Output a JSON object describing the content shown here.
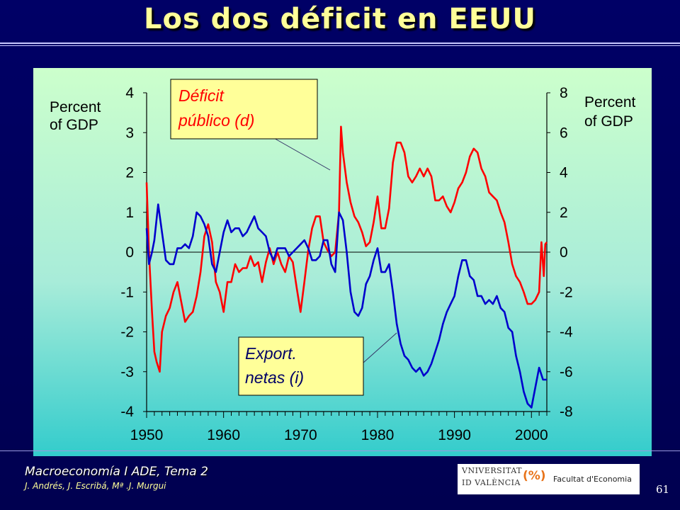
{
  "slide": {
    "title": "Los dos déficit en EEUU",
    "footer_course": "Macroeconomía I ADE, Tema 2",
    "footer_authors": "J. Andrés, J. Escribá, Mª .J. Murgui",
    "page_number": "61",
    "logo": {
      "line1": "VNIVERSITAT",
      "line2": "ID VALÈNCIA",
      "mark": "(%)",
      "faculty": "Facultat d'Economia"
    }
  },
  "colors": {
    "background": "#000066",
    "title": "#ffff99",
    "deficit_line": "#ff0000",
    "exports_line": "#0000cc",
    "callout_fill": "#ffff99"
  },
  "chart_data": {
    "type": "line",
    "title": "",
    "left_axis_label": "Percent of GDP",
    "right_axis_label": "Percent of GDP",
    "xlim": [
      1950,
      2002
    ],
    "left_ylim": [
      -4,
      4
    ],
    "right_ylim": [
      -8,
      8
    ],
    "x_ticks": [
      "1950",
      "1960",
      "1970",
      "1980",
      "1990",
      "2000"
    ],
    "left_ticks": [
      "-4",
      "-3",
      "-2",
      "-1",
      "0",
      "1",
      "2",
      "3",
      "4"
    ],
    "right_ticks": [
      "-8",
      "-6",
      "-4",
      "-2",
      "0",
      "2",
      "4",
      "6",
      "8"
    ],
    "grid": false,
    "series": [
      {
        "name": "Déficit público (d)",
        "axis": "right",
        "color": "#ff0000",
        "x": [
          1950,
          1950.3,
          1950.7,
          1951,
          1951.3,
          1951.7,
          1952,
          1952.5,
          1953,
          1953.5,
          1954,
          1954.5,
          1955,
          1955.5,
          1956,
          1956.5,
          1957,
          1957.5,
          1958,
          1958.5,
          1959,
          1959.5,
          1960,
          1960.5,
          1961,
          1961.5,
          1962,
          1962.5,
          1963,
          1963.5,
          1964,
          1964.5,
          1965,
          1965.5,
          1966,
          1966.5,
          1967,
          1967.5,
          1968,
          1968.5,
          1969,
          1969.5,
          1970,
          1970.5,
          1971,
          1971.5,
          1972,
          1972.5,
          1973,
          1973.5,
          1974,
          1974.5,
          1975,
          1975.25,
          1975.5,
          1976,
          1976.5,
          1977,
          1977.5,
          1978,
          1978.5,
          1979,
          1979.5,
          1980,
          1980.5,
          1981,
          1981.5,
          1982,
          1982.5,
          1983,
          1983.5,
          1984,
          1984.5,
          1985,
          1985.5,
          1986,
          1986.5,
          1987,
          1987.5,
          1988,
          1988.5,
          1989,
          1989.5,
          1990,
          1990.5,
          1991,
          1991.5,
          1992,
          1992.5,
          1993,
          1993.5,
          1994,
          1994.5,
          1995,
          1995.5,
          1996,
          1996.5,
          1997,
          1997.5,
          1998,
          1998.5,
          1999,
          1999.5,
          2000,
          2000.5,
          2001,
          2001.3,
          2001.6,
          2001.8,
          2002
        ],
        "values": [
          3.5,
          0,
          -3,
          -5,
          -5.5,
          -6,
          -4,
          -3.2,
          -2.8,
          -2,
          -1.5,
          -2.5,
          -3.5,
          -3.2,
          -3,
          -2.2,
          -1,
          0.8,
          1.4,
          0.5,
          -1.5,
          -2,
          -3,
          -1.5,
          -1.5,
          -0.6,
          -1,
          -0.8,
          -0.8,
          -0.2,
          -0.7,
          -0.5,
          -1.5,
          -0.5,
          0.2,
          -0.6,
          0,
          -0.6,
          -1,
          -0.2,
          -0.5,
          -1.8,
          -3,
          -1.5,
          0.1,
          1.2,
          1.8,
          1.8,
          0.5,
          0.1,
          -0.2,
          0,
          2,
          6.3,
          5,
          3.5,
          2.5,
          1.8,
          1.5,
          1.0,
          0.3,
          0.5,
          1.5,
          2.8,
          1.2,
          1.2,
          2.2,
          4.5,
          5.5,
          5.5,
          5,
          3.8,
          3.5,
          3.8,
          4.2,
          3.8,
          4.2,
          3.8,
          2.6,
          2.6,
          2.8,
          2.3,
          2,
          2.5,
          3.2,
          3.5,
          4,
          4.8,
          5.2,
          5,
          4.2,
          3.8,
          3,
          2.8,
          2.6,
          2,
          1.5,
          0.5,
          -0.6,
          -1.2,
          -1.5,
          -2.0,
          -2.6,
          -2.6,
          -2.4,
          -2,
          0.5,
          -1.2,
          0.4,
          0.5
        ]
      },
      {
        "name": "Export. netas (i)",
        "axis": "left",
        "color": "#0000cc",
        "x": [
          1950,
          1950.3,
          1950.7,
          1951,
          1951.5,
          1952,
          1952.5,
          1953,
          1953.5,
          1954,
          1954.5,
          1955,
          1955.5,
          1956,
          1956.5,
          1957,
          1957.5,
          1958,
          1958.5,
          1959,
          1959.5,
          1960,
          1960.5,
          1961,
          1961.5,
          1962,
          1962.5,
          1963,
          1963.5,
          1964,
          1964.5,
          1965,
          1965.5,
          1966,
          1966.5,
          1967,
          1967.5,
          1968,
          1968.5,
          1969,
          1969.5,
          1970,
          1970.5,
          1971,
          1971.5,
          1972,
          1972.5,
          1973,
          1973.5,
          1974,
          1974.5,
          1975,
          1975.5,
          1976,
          1976.5,
          1977,
          1977.5,
          1978,
          1978.5,
          1979,
          1979.5,
          1980,
          1980.5,
          1981,
          1981.5,
          1982,
          1982.5,
          1983,
          1983.5,
          1984,
          1984.5,
          1985,
          1985.5,
          1986,
          1986.5,
          1987,
          1987.5,
          1988,
          1988.5,
          1989,
          1989.5,
          1990,
          1990.5,
          1991,
          1991.5,
          1992,
          1992.5,
          1993,
          1993.5,
          1994,
          1994.5,
          1995,
          1995.5,
          1996,
          1996.5,
          1997,
          1997.5,
          1998,
          1998.5,
          1999,
          1999.5,
          2000,
          2000.5,
          2001,
          2001.5,
          2002
        ],
        "values": [
          0.6,
          -0.3,
          0,
          0.3,
          1.2,
          0.5,
          -0.2,
          -0.3,
          -0.3,
          0.1,
          0.1,
          0.2,
          0.1,
          0.4,
          1,
          0.9,
          0.7,
          0.4,
          -0.3,
          -0.5,
          0,
          0.5,
          0.8,
          0.5,
          0.6,
          0.6,
          0.4,
          0.5,
          0.7,
          0.9,
          0.6,
          0.5,
          0.4,
          0,
          -0.2,
          0.1,
          0.1,
          0.1,
          -0.1,
          0,
          0.1,
          0.2,
          0.3,
          0.1,
          -0.2,
          -0.2,
          -0.1,
          0.3,
          0.3,
          -0.3,
          -0.5,
          1,
          0.8,
          0,
          -1,
          -1.5,
          -1.6,
          -1.4,
          -0.8,
          -0.6,
          -0.2,
          0.1,
          -0.5,
          -0.5,
          -0.3,
          -1,
          -1.8,
          -2.3,
          -2.6,
          -2.7,
          -2.9,
          -3,
          -2.9,
          -3.1,
          -3,
          -2.8,
          -2.5,
          -2.2,
          -1.8,
          -1.5,
          -1.3,
          -1.1,
          -0.6,
          -0.2,
          -0.2,
          -0.6,
          -0.7,
          -1.1,
          -1.1,
          -1.3,
          -1.2,
          -1.3,
          -1.1,
          -1.4,
          -1.5,
          -1.9,
          -2,
          -2.6,
          -3,
          -3.5,
          -3.8,
          -3.9,
          -3.4,
          -2.9,
          -3.2,
          -3.2
        ]
      }
    ],
    "annotations": [
      {
        "text_lines": [
          "Déficit",
          "público (d)"
        ]
      },
      {
        "text_lines": [
          "Export.",
          "netas (i)"
        ]
      }
    ]
  }
}
